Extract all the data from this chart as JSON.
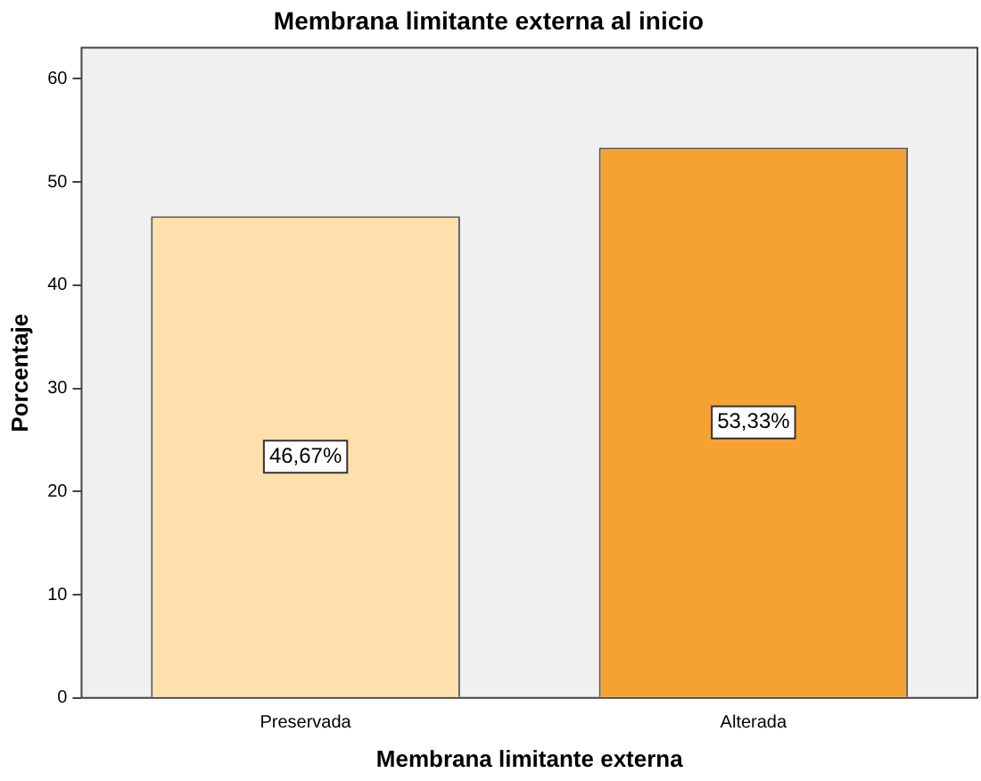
{
  "chart_data": {
    "type": "bar",
    "title": "Membrana limitante externa al inicio",
    "xlabel": "Membrana limitante externa",
    "ylabel": "Porcentaje",
    "categories": [
      "Preservada",
      "Alterada"
    ],
    "values": [
      46.67,
      53.33
    ],
    "colors": [
      "#fde0ac",
      "#f5a233"
    ],
    "value_labels": [
      "46,67%",
      "53,33%"
    ],
    "ylim": [
      0,
      63
    ],
    "yticks": [
      0,
      10,
      20,
      30,
      40,
      50,
      60
    ],
    "grid": false,
    "legend": false
  }
}
